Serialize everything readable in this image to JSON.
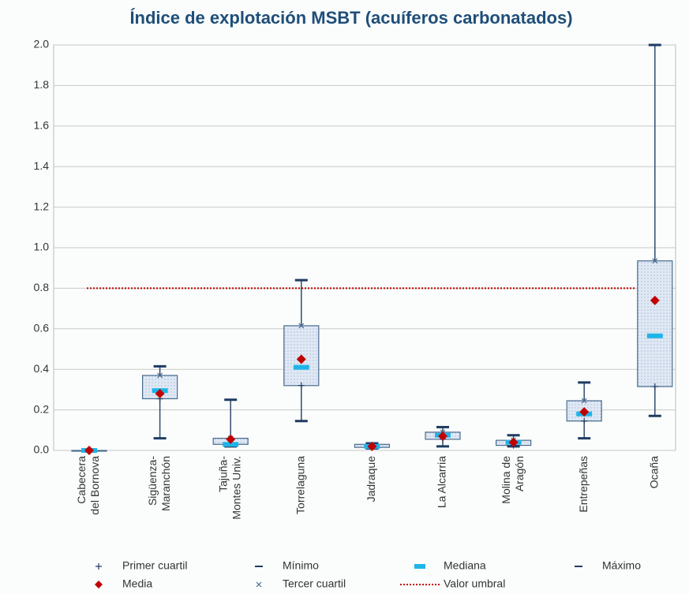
{
  "chart_data": {
    "type": "box",
    "title": "Índice de explotación MSBT (acuíferos carbonatados)",
    "categories": [
      [
        "Cabecera",
        "del Bornova"
      ],
      [
        "Sigüenza-",
        "Maranchón"
      ],
      [
        "Tajuña-",
        "Montes Univ."
      ],
      [
        "Torrelaguna"
      ],
      [
        "Jadraque"
      ],
      [
        "La Alcarria"
      ],
      [
        "Molina de",
        "Aragón"
      ],
      [
        "Entrepeñas"
      ],
      [
        "Ocaña"
      ]
    ],
    "series": [
      {
        "name": "Primer cuartil",
        "color": "#1f3b63",
        "values": [
          0,
          0.255,
          0.03,
          0.32,
          0.015,
          0.055,
          0.025,
          0.145,
          0.315
        ]
      },
      {
        "name": "Mínimo",
        "color": "#1f3b63",
        "values": [
          0,
          0.06,
          0.02,
          0.145,
          0.01,
          0.02,
          0.02,
          0.06,
          0.17
        ]
      },
      {
        "name": "Mediana",
        "color": "#1fb4e8",
        "values": [
          0,
          0.295,
          0.03,
          0.41,
          0.02,
          0.075,
          0.04,
          0.18,
          0.565
        ]
      },
      {
        "name": "Máximo",
        "color": "#1f3b63",
        "values": [
          0,
          0.415,
          0.25,
          0.84,
          0.035,
          0.115,
          0.075,
          0.335,
          2.0
        ]
      },
      {
        "name": "Media",
        "color": "#c00000",
        "values": [
          0,
          0.28,
          0.055,
          0.45,
          0.02,
          0.07,
          0.04,
          0.19,
          0.74
        ]
      },
      {
        "name": "Tercer cuartil",
        "color": "#4a6b8f",
        "values": [
          0,
          0.37,
          0.06,
          0.615,
          0.03,
          0.09,
          0.05,
          0.245,
          0.935
        ]
      }
    ],
    "threshold": {
      "name": "Valor umbral",
      "value": 0.8,
      "color": "#c00000"
    },
    "ylim": [
      0,
      2.0
    ],
    "yticks": [
      {
        "value": 0,
        "label": "0.0"
      },
      {
        "value": 0.2,
        "label": "0.2"
      },
      {
        "value": 0.4,
        "label": "0.4"
      },
      {
        "value": 0.6,
        "label": "0.6"
      },
      {
        "value": 0.8,
        "label": "0.8"
      },
      {
        "value": 1.0,
        "label": "1.0"
      },
      {
        "value": 1.2,
        "label": "1.2"
      },
      {
        "value": 1.4,
        "label": "1.4"
      },
      {
        "value": 1.6,
        "label": "1.6"
      },
      {
        "value": 1.8,
        "label": "1.8"
      },
      {
        "value": 2.0,
        "label": "2.0"
      }
    ],
    "grid": true
  }
}
